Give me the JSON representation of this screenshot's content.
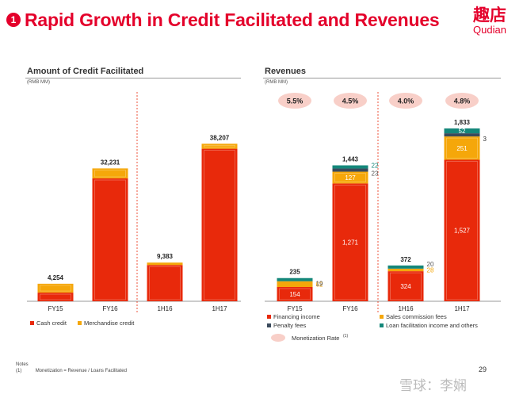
{
  "header": {
    "badge_number": "1",
    "title": "Rapid Growth in Credit Facilitated and Revenues",
    "logo_cn": "趣店",
    "logo_en": "Qudian"
  },
  "credit_section": {
    "title": "Amount of Credit Facilitated",
    "unit": "(RMB MM)"
  },
  "revenue_section": {
    "title": "Revenues",
    "unit": "(RMB MM)"
  },
  "chart_data": [
    {
      "type": "bar",
      "stacked": true,
      "title": "Amount of Credit Facilitated",
      "unit_note": "(RMB MM)",
      "categories": [
        "FY15",
        "FY16",
        "1H16",
        "1H17"
      ],
      "totals": [
        4254,
        32231,
        9383,
        38207
      ],
      "total_labels": [
        "4,254",
        "32,231",
        "9,383",
        "38,207"
      ],
      "series": [
        {
          "name": "Cash credit",
          "color": "#e8290b",
          "values": [
            2100,
            29800,
            8800,
            37000
          ]
        },
        {
          "name": "Merchandise credit",
          "color": "#f5a70a",
          "values": [
            2154,
            2431,
            583,
            1207
          ]
        }
      ],
      "legend_position": "bottom-left",
      "separator_after_category": 1
    },
    {
      "type": "bar",
      "stacked": true,
      "title": "Revenues",
      "unit_note": "(RMB MM)",
      "categories": [
        "FY15",
        "FY16",
        "1H16",
        "1H17"
      ],
      "totals": [
        235,
        1443,
        372,
        1833
      ],
      "total_labels": [
        "235",
        "1,443",
        "372",
        "1,833"
      ],
      "monetization_rates": [
        "5.5%",
        "4.5%",
        "4.0%",
        "4.8%"
      ],
      "series": [
        {
          "name": "Financing income",
          "color": "#e8290b",
          "values": [
            154,
            1271,
            324,
            1527
          ],
          "labels": [
            "154",
            "1,271",
            "324",
            "1,527"
          ]
        },
        {
          "name": "Sales commission fees",
          "color": "#f5a70a",
          "values": [
            62,
            127,
            28,
            251
          ],
          "labels": [
            "62",
            "127",
            "28",
            "251"
          ]
        },
        {
          "name": "Penalty fees",
          "color": "#3a4a5c",
          "values": [
            0,
            23,
            0,
            3
          ],
          "labels": [
            "",
            "23",
            "",
            "3"
          ]
        },
        {
          "name": "Loan facilitation income and others",
          "color": "#14877a",
          "values": [
            19,
            22,
            20,
            52
          ],
          "labels": [
            "19",
            "22",
            "20",
            "52"
          ]
        }
      ],
      "legend": [
        {
          "name": "Financing income",
          "color": "#e8290b"
        },
        {
          "name": "Sales commission fees",
          "color": "#f5a70a"
        },
        {
          "name": "Penalty fees",
          "color": "#3a4a5c"
        },
        {
          "name": "Loan facilitation income and others",
          "color": "#14877a"
        }
      ],
      "rate_legend": "Monetization Rate",
      "rate_legend_sup": "(1)",
      "legend_position": "bottom",
      "separator_after_category": 1
    }
  ],
  "notes": {
    "heading": "Notes",
    "marker": "(1)",
    "text": "Monetization = Revenue / Loans Facilitated"
  },
  "page_number": "29",
  "watermark": "雪球：李娴",
  "colors": {
    "accent": "#e4002b",
    "rate_bubble": "#f8cfc8"
  }
}
